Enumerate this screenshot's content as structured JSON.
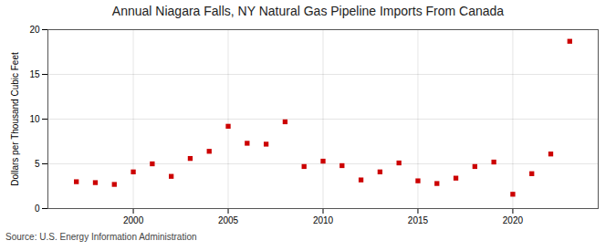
{
  "chart_data": {
    "type": "scatter",
    "title": "Annual Niagara Falls, NY Natural Gas Pipeline Imports From Canada",
    "ylabel": "Dollars per Thousand Cubic Feet",
    "source": "Source: U.S. Energy Information Administration",
    "x": [
      1997,
      1998,
      1999,
      2000,
      2001,
      2002,
      2003,
      2004,
      2005,
      2006,
      2007,
      2008,
      2009,
      2010,
      2011,
      2012,
      2013,
      2014,
      2015,
      2016,
      2017,
      2018,
      2019,
      2020,
      2021,
      2022,
      2023
    ],
    "values": [
      3.0,
      2.9,
      2.7,
      4.1,
      5.0,
      3.6,
      5.6,
      6.4,
      9.2,
      7.3,
      7.2,
      9.7,
      4.7,
      5.3,
      4.8,
      3.2,
      4.1,
      5.1,
      3.1,
      2.8,
      3.4,
      4.7,
      5.2,
      1.6,
      3.9,
      6.1,
      18.7
    ],
    "color": "#cc0000",
    "marker": "square",
    "xlim": [
      1995.5,
      2024.5
    ],
    "xticks": [
      2000,
      2005,
      2010,
      2015,
      2020
    ],
    "ylim": [
      0,
      20
    ],
    "yticks": [
      0,
      5,
      10,
      15,
      20
    ],
    "grid": true
  }
}
